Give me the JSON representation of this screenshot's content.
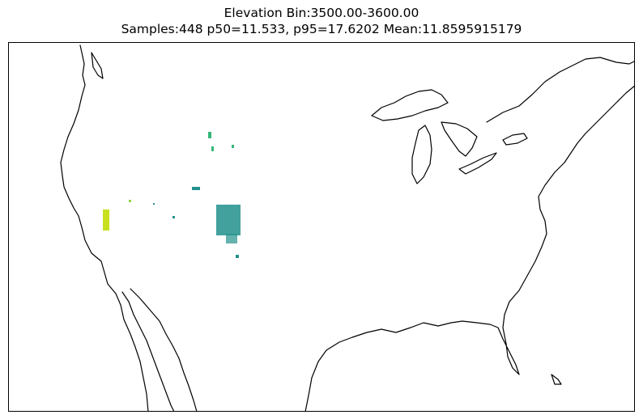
{
  "title": {
    "line1": "Elevation Bin:3500.00-3600.00",
    "line2": "Samples:448 p50=11.533, p95=17.6202 Mean:11.8595915179"
  },
  "colors": {
    "coastline": "#000000",
    "sample_teal": "#21918c",
    "sample_green": "#35b779",
    "sample_yellow": "#c8e020",
    "sample_lime": "#90d743"
  }
}
